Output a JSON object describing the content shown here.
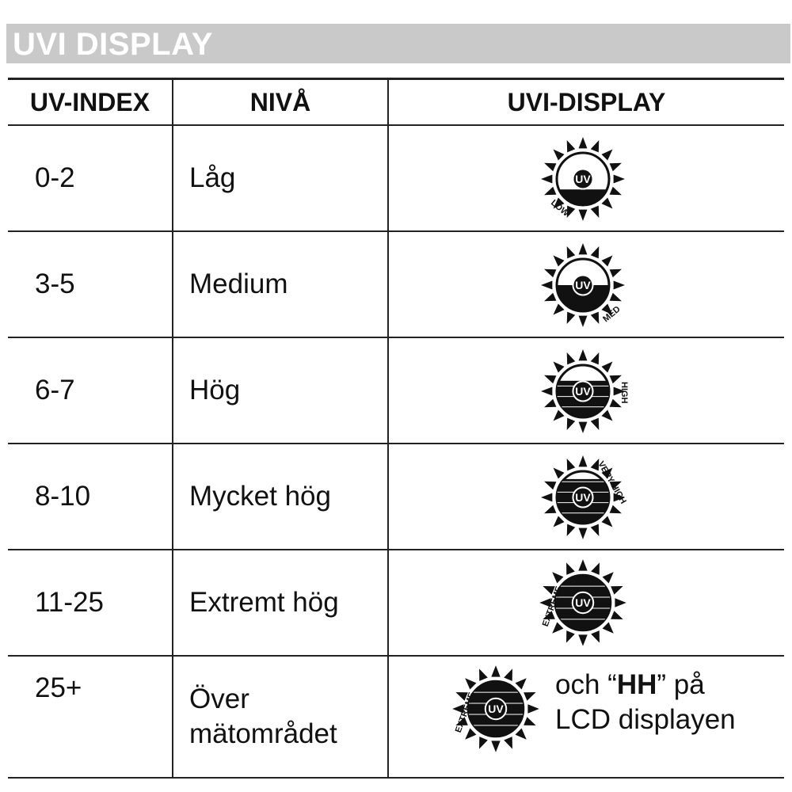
{
  "banner_title": "UVI DISPLAY",
  "columns": [
    "UV-INDEX",
    "NIVÅ",
    "UVI-DISPLAY"
  ],
  "rows": [
    {
      "index": "0-2",
      "level": "Låg",
      "tag": "LOW",
      "fill": 0.3
    },
    {
      "index": "3-5",
      "level": "Medium",
      "tag": "MED",
      "fill": 0.5
    },
    {
      "index": "6-7",
      "level": "Hög",
      "tag": "HIGH",
      "fill": 0.7
    },
    {
      "index": "8-10",
      "level": "Mycket hög",
      "tag": "VERY HIGH",
      "fill": 0.85
    },
    {
      "index": "11-25",
      "level": "Extremt hög",
      "tag": "EXTREME",
      "fill": 1.0
    },
    {
      "index": "25+",
      "level_line1": "Över",
      "level_line2": "mätområdet",
      "tag": "EXTREME",
      "fill": 1.0,
      "note_pre": "och “",
      "note_bold": "HH",
      "note_post": "” på",
      "note_line2": "LCD displayen"
    }
  ],
  "sun_center_label": "UV",
  "colors": {
    "banner": "#c9c9c9",
    "ink": "#111111"
  }
}
